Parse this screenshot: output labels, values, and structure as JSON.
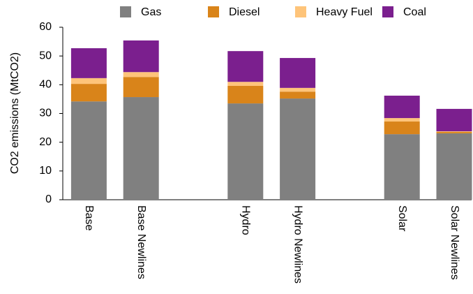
{
  "chart_data": {
    "type": "stacked_bar",
    "y_label": "CO2 emissions (MtCO2)",
    "categories": [
      "Base",
      "Base Newlines",
      null,
      "Hydro",
      "Hydro Newlines",
      null,
      "Solar",
      "Solar Newlines"
    ],
    "series": [
      {
        "name": "Gas",
        "color": "#808080",
        "values": [
          34.2,
          35.7,
          null,
          33.5,
          35.2,
          null,
          22.8,
          23.1
        ]
      },
      {
        "name": "Diesel",
        "color": "#d9841a",
        "values": [
          6.1,
          7.0,
          null,
          6.1,
          2.4,
          null,
          4.4,
          0.5
        ]
      },
      {
        "name": "Heavy Fuel",
        "color": "#fec47a",
        "values": [
          2.0,
          1.7,
          null,
          1.4,
          1.3,
          null,
          1.2,
          0.2
        ]
      },
      {
        "name": "Coal",
        "color": "#7b1f8e",
        "values": [
          10.4,
          11.0,
          null,
          10.7,
          10.4,
          null,
          7.8,
          7.8
        ]
      }
    ],
    "ylim": [
      0,
      60
    ],
    "yticks": [
      0,
      10,
      20,
      30,
      40,
      50,
      60
    ],
    "grid": false,
    "legend": "top"
  }
}
